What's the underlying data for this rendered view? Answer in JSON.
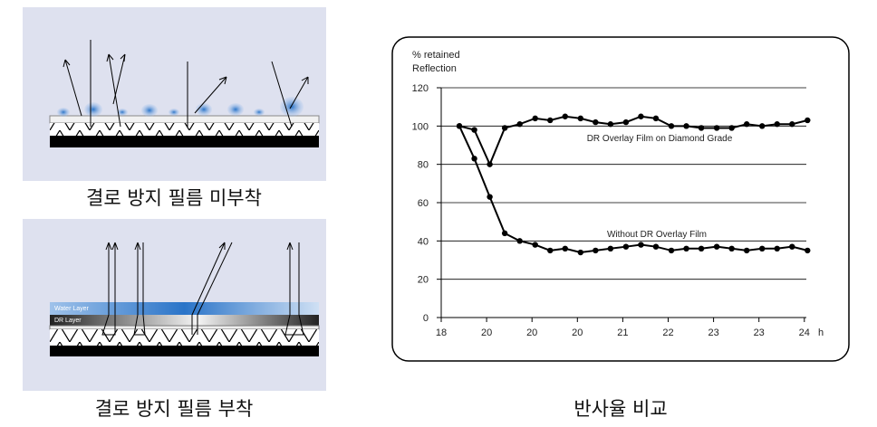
{
  "figures": [
    {
      "caption": "결로 방지 필름 미부착"
    },
    {
      "caption": "결로 방지 필름 부착",
      "layers": [
        "Water Layer",
        "DR Layer"
      ]
    }
  ],
  "chart_caption": "반사율 비교",
  "chart_data": {
    "type": "line",
    "ylabel_lines": [
      "% retained",
      "Reflection"
    ],
    "xtick_labels": [
      "18",
      "20",
      "20",
      "20",
      "21",
      "22",
      "23",
      "23",
      "24"
    ],
    "x_unit": "h",
    "x": [
      0.4,
      0.73,
      1.07,
      1.4,
      1.73,
      2.07,
      2.4,
      2.73,
      3.07,
      3.4,
      3.73,
      4.07,
      4.4,
      4.73,
      5.07,
      5.4,
      5.73,
      6.07,
      6.4,
      6.73,
      7.07,
      7.4,
      7.73,
      8.07
    ],
    "series": [
      {
        "name": "DR Overlay Film on Diamond Grade",
        "color": "#000000",
        "values": [
          100,
          98,
          80,
          99,
          101,
          104,
          103,
          105,
          104,
          102,
          101,
          102,
          105,
          104,
          100,
          100,
          99,
          99,
          99,
          101,
          100,
          101,
          101,
          103
        ]
      },
      {
        "name": "Without DR Overlay Film",
        "color": "#000000",
        "values": [
          100,
          83,
          63,
          44,
          40,
          38,
          35,
          36,
          34,
          35,
          36,
          37,
          38,
          37,
          35,
          36,
          36,
          37,
          36,
          35,
          36,
          36,
          37,
          35
        ]
      }
    ],
    "ylim": [
      0,
      120
    ],
    "yticks": [
      0,
      20,
      40,
      60,
      80,
      100,
      120
    ],
    "grid": true
  }
}
